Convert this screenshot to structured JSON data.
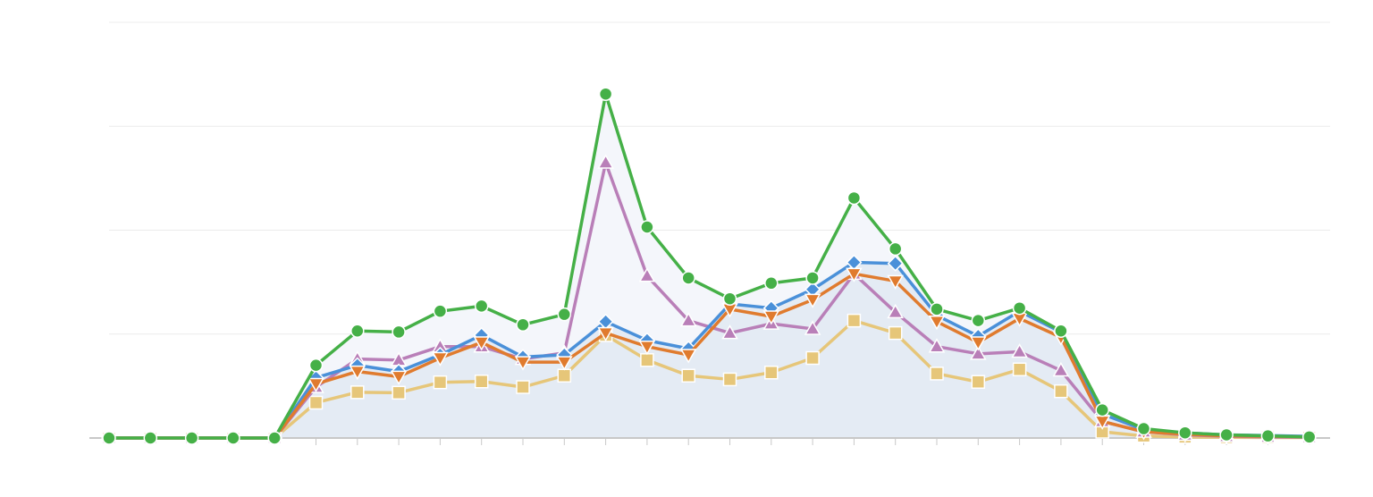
{
  "chart_data": {
    "type": "line",
    "title": "",
    "xlabel": "",
    "ylabel": "",
    "ylim": [
      0,
      2000
    ],
    "grid": true,
    "x_tick_labels": [
      "",
      "",
      "",
      "",
      "",
      ""
    ],
    "y_tick_labels": [
      "",
      "",
      "",
      ""
    ],
    "n_points": 30,
    "series": [
      {
        "color": "#e6c679",
        "marker": "square",
        "values": [
          0,
          0,
          0,
          0,
          0,
          170,
          220,
          218,
          268,
          272,
          245,
          300,
          495,
          375,
          300,
          282,
          315,
          385,
          565,
          505,
          310,
          270,
          330,
          225,
          30,
          10,
          5,
          3,
          2,
          2
        ]
      },
      {
        "color": "#b97fb8",
        "marker": "triangle-up",
        "values": [
          0,
          0,
          0,
          0,
          0,
          245,
          380,
          375,
          440,
          440,
          380,
          410,
          1325,
          780,
          565,
          505,
          550,
          525,
          790,
          605,
          440,
          405,
          415,
          325,
          80,
          30,
          15,
          8,
          5,
          3
        ]
      },
      {
        "color": "#4a90d9",
        "marker": "diamond",
        "values": [
          0,
          0,
          0,
          0,
          0,
          290,
          350,
          320,
          400,
          495,
          390,
          400,
          560,
          470,
          430,
          645,
          625,
          715,
          845,
          840,
          590,
          490,
          610,
          510,
          115,
          40,
          25,
          15,
          12,
          8
        ]
      },
      {
        "color": "#e07b2e",
        "marker": "triangle-down",
        "values": [
          0,
          0,
          0,
          0,
          0,
          260,
          320,
          295,
          385,
          460,
          365,
          365,
          505,
          440,
          400,
          620,
          585,
          665,
          790,
          755,
          560,
          460,
          575,
          485,
          80,
          30,
          18,
          10,
          8,
          5
        ]
      },
      {
        "color": "#45b047",
        "marker": "circle",
        "values": [
          0,
          0,
          0,
          0,
          0,
          350,
          515,
          510,
          610,
          635,
          545,
          595,
          1655,
          1015,
          770,
          670,
          745,
          770,
          1155,
          910,
          620,
          565,
          625,
          515,
          135,
          45,
          25,
          15,
          10,
          5
        ]
      }
    ]
  }
}
